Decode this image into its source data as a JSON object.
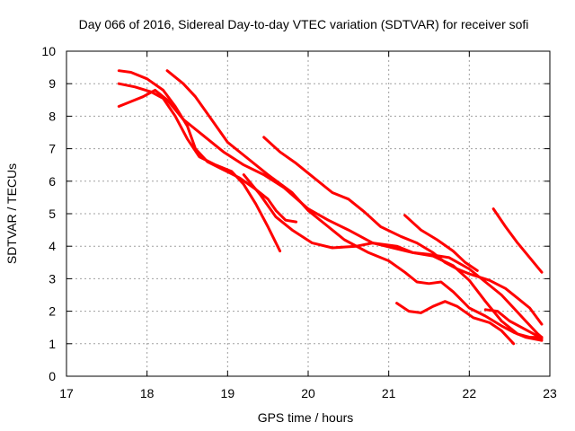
{
  "chart_data": {
    "type": "line",
    "title": "Day 066 of 2016, Sidereal Day-to-day VTEC variation (SDTVAR) for receiver sofi",
    "xlabel": "GPS time / hours",
    "ylabel": "SDTVAR / TECUs",
    "xlim": [
      17,
      23
    ],
    "ylim": [
      0,
      10
    ],
    "xticks": [
      "17",
      "18",
      "19",
      "20",
      "21",
      "22",
      "23"
    ],
    "yticks": [
      "0",
      "1",
      "2",
      "3",
      "4",
      "5",
      "6",
      "7",
      "8",
      "9",
      "10"
    ],
    "grid": true,
    "legend": "none",
    "color": "#ff0000",
    "series": [
      {
        "name": "track-1",
        "points": [
          [
            17.65,
            9.4
          ],
          [
            17.8,
            9.35
          ],
          [
            18.0,
            9.15
          ],
          [
            18.2,
            8.8
          ],
          [
            18.35,
            8.3
          ],
          [
            18.5,
            7.7
          ],
          [
            18.6,
            7.0
          ],
          [
            18.75,
            6.6
          ],
          [
            18.95,
            6.35
          ],
          [
            19.15,
            6.1
          ],
          [
            19.35,
            5.75
          ],
          [
            19.5,
            5.45
          ],
          [
            19.6,
            5.1
          ],
          [
            19.72,
            4.8
          ],
          [
            19.85,
            4.75
          ]
        ]
      },
      {
        "name": "track-2",
        "points": [
          [
            17.65,
            9.0
          ],
          [
            17.85,
            8.9
          ],
          [
            18.05,
            8.75
          ],
          [
            18.2,
            8.55
          ],
          [
            18.35,
            8.0
          ],
          [
            18.5,
            7.3
          ],
          [
            18.65,
            6.75
          ],
          [
            18.85,
            6.5
          ],
          [
            19.05,
            6.3
          ],
          [
            19.2,
            5.9
          ],
          [
            19.35,
            5.3
          ],
          [
            19.5,
            4.6
          ],
          [
            19.65,
            3.85
          ]
        ]
      },
      {
        "name": "track-3",
        "points": [
          [
            17.65,
            8.3
          ],
          [
            17.8,
            8.45
          ],
          [
            17.95,
            8.6
          ],
          [
            18.1,
            8.8
          ],
          [
            18.25,
            8.5
          ],
          [
            18.45,
            7.9
          ],
          [
            18.7,
            7.4
          ],
          [
            18.95,
            6.9
          ],
          [
            19.2,
            6.5
          ],
          [
            19.45,
            6.2
          ],
          [
            19.7,
            5.8
          ],
          [
            20.0,
            5.15
          ],
          [
            20.25,
            4.8
          ],
          [
            20.5,
            4.5
          ],
          [
            20.8,
            4.1
          ],
          [
            21.1,
            4.0
          ],
          [
            21.3,
            3.8
          ],
          [
            21.5,
            3.75
          ],
          [
            21.75,
            3.65
          ],
          [
            22.0,
            3.3
          ],
          [
            22.2,
            2.9
          ],
          [
            22.4,
            2.5
          ],
          [
            22.55,
            2.1
          ],
          [
            22.7,
            1.7
          ],
          [
            22.85,
            1.3
          ],
          [
            22.9,
            1.2
          ]
        ]
      },
      {
        "name": "track-4",
        "points": [
          [
            18.25,
            9.4
          ],
          [
            18.45,
            9.0
          ],
          [
            18.6,
            8.6
          ],
          [
            18.8,
            7.9
          ],
          [
            19.0,
            7.2
          ],
          [
            19.25,
            6.7
          ],
          [
            19.5,
            6.2
          ],
          [
            19.8,
            5.65
          ],
          [
            20.0,
            5.1
          ],
          [
            20.25,
            4.6
          ],
          [
            20.45,
            4.2
          ],
          [
            20.75,
            3.8
          ],
          [
            21.0,
            3.55
          ],
          [
            21.2,
            3.2
          ],
          [
            21.35,
            2.9
          ],
          [
            21.5,
            2.85
          ],
          [
            21.65,
            2.9
          ],
          [
            21.8,
            2.6
          ],
          [
            22.0,
            2.1
          ],
          [
            22.2,
            1.85
          ],
          [
            22.4,
            1.55
          ],
          [
            22.55,
            1.35
          ],
          [
            22.7,
            1.2
          ],
          [
            22.9,
            1.1
          ]
        ]
      },
      {
        "name": "track-5",
        "points": [
          [
            19.45,
            7.35
          ],
          [
            19.65,
            6.9
          ],
          [
            19.85,
            6.55
          ],
          [
            20.05,
            6.15
          ],
          [
            20.3,
            5.65
          ],
          [
            20.5,
            5.45
          ],
          [
            20.7,
            5.05
          ],
          [
            20.9,
            4.6
          ],
          [
            21.15,
            4.3
          ],
          [
            21.35,
            4.1
          ],
          [
            21.55,
            3.8
          ],
          [
            21.7,
            3.5
          ],
          [
            21.85,
            3.3
          ],
          [
            22.0,
            3.15
          ],
          [
            22.25,
            2.95
          ],
          [
            22.45,
            2.7
          ],
          [
            22.6,
            2.4
          ],
          [
            22.75,
            2.1
          ],
          [
            22.9,
            1.6
          ]
        ]
      },
      {
        "name": "track-6",
        "points": [
          [
            19.2,
            6.2
          ],
          [
            19.4,
            5.6
          ],
          [
            19.6,
            4.9
          ],
          [
            19.8,
            4.5
          ],
          [
            20.05,
            4.1
          ],
          [
            20.3,
            3.95
          ],
          [
            20.6,
            4.0
          ],
          [
            20.8,
            4.1
          ],
          [
            21.05,
            3.95
          ],
          [
            21.3,
            3.8
          ],
          [
            21.55,
            3.7
          ],
          [
            21.8,
            3.4
          ],
          [
            22.0,
            2.95
          ],
          [
            22.2,
            2.3
          ],
          [
            22.4,
            1.7
          ],
          [
            22.6,
            1.3
          ],
          [
            22.75,
            1.2
          ],
          [
            22.9,
            1.2
          ]
        ]
      },
      {
        "name": "track-7",
        "points": [
          [
            21.1,
            2.25
          ],
          [
            21.25,
            2.0
          ],
          [
            21.4,
            1.95
          ],
          [
            21.55,
            2.15
          ],
          [
            21.7,
            2.3
          ],
          [
            21.85,
            2.15
          ],
          [
            22.05,
            1.8
          ],
          [
            22.25,
            1.65
          ],
          [
            22.4,
            1.4
          ],
          [
            22.55,
            1.0
          ]
        ]
      },
      {
        "name": "track-8",
        "points": [
          [
            21.2,
            4.95
          ],
          [
            21.4,
            4.5
          ],
          [
            21.6,
            4.2
          ],
          [
            21.8,
            3.85
          ],
          [
            21.95,
            3.5
          ],
          [
            22.1,
            3.25
          ]
        ]
      },
      {
        "name": "track-9",
        "points": [
          [
            22.3,
            5.15
          ],
          [
            22.45,
            4.6
          ],
          [
            22.6,
            4.1
          ],
          [
            22.75,
            3.65
          ],
          [
            22.9,
            3.2
          ]
        ]
      },
      {
        "name": "track-10",
        "points": [
          [
            22.2,
            2.05
          ],
          [
            22.35,
            2.0
          ],
          [
            22.5,
            1.7
          ],
          [
            22.65,
            1.5
          ],
          [
            22.8,
            1.3
          ],
          [
            22.9,
            1.15
          ]
        ]
      }
    ]
  }
}
